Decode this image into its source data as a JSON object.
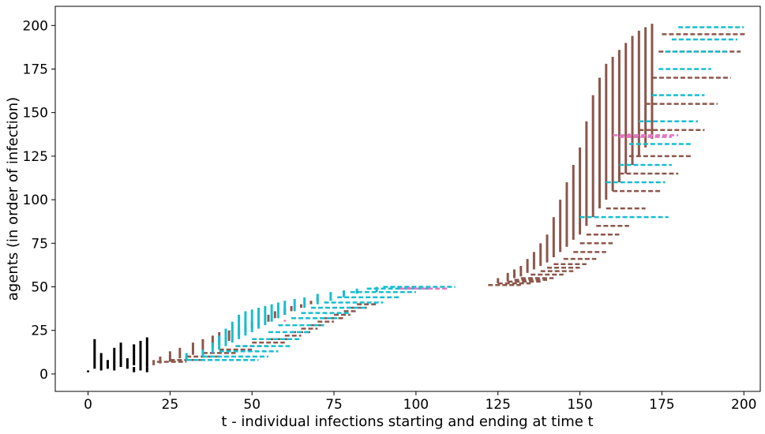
{
  "chart_data": {
    "type": "line",
    "xlabel": "t - individual infections starting and ending at time t",
    "ylabel": "agents (in order of infection)",
    "xlim": [
      -10,
      205
    ],
    "ylim": [
      -10,
      211
    ],
    "xticks": [
      0,
      25,
      50,
      75,
      100,
      125,
      150,
      175,
      200
    ],
    "yticks": [
      0,
      25,
      50,
      75,
      100,
      125,
      150,
      175,
      200
    ],
    "xtick_labels": [
      "0",
      "25",
      "50",
      "75",
      "100",
      "125",
      "150",
      "175",
      "200"
    ],
    "ytick_labels": [
      "0",
      "25",
      "50",
      "75",
      "100",
      "125",
      "150",
      "175",
      "200"
    ],
    "grid": false,
    "legend": "none",
    "colors": {
      "black": "#000000",
      "brown": "#8c564b",
      "cyan": "#17becf",
      "pink": "#e377c2"
    },
    "series": [
      {
        "color": "black",
        "segments": [
          [
            0,
            1,
            2
          ],
          [
            2,
            3,
            20
          ],
          [
            4,
            2,
            12
          ],
          [
            6,
            3,
            8
          ],
          [
            8,
            2,
            15
          ],
          [
            10,
            4,
            18
          ],
          [
            12,
            3,
            9
          ],
          [
            14,
            5,
            17
          ],
          [
            16,
            2,
            19
          ],
          [
            18,
            4,
            21
          ],
          [
            14,
            1,
            4
          ],
          [
            18,
            1,
            4
          ]
        ]
      },
      {
        "color": "brown",
        "segments": [
          [
            20,
            5,
            8
          ],
          [
            22,
            6,
            10
          ],
          [
            25,
            7,
            13
          ],
          [
            28,
            9,
            15
          ],
          [
            32,
            11,
            18
          ],
          [
            35,
            13,
            20
          ],
          [
            38,
            15,
            22
          ],
          [
            40,
            17,
            24
          ],
          [
            43,
            19,
            25
          ],
          [
            46,
            22,
            27
          ],
          [
            48,
            24,
            28
          ],
          [
            50,
            26,
            30
          ],
          [
            52,
            28,
            32
          ],
          [
            55,
            30,
            34
          ],
          [
            57,
            32,
            36
          ],
          [
            60,
            34,
            38
          ],
          [
            62,
            36,
            39
          ],
          [
            65,
            38,
            40
          ],
          [
            68,
            40,
            42
          ],
          [
            70,
            42,
            44
          ],
          [
            125,
            52,
            55
          ],
          [
            128,
            53,
            58
          ],
          [
            130,
            55,
            60
          ],
          [
            132,
            56,
            62
          ],
          [
            134,
            58,
            66
          ],
          [
            136,
            60,
            70
          ],
          [
            138,
            62,
            75
          ],
          [
            140,
            64,
            80
          ],
          [
            142,
            67,
            90
          ],
          [
            144,
            70,
            100
          ],
          [
            146,
            73,
            110
          ],
          [
            148,
            77,
            120
          ],
          [
            150,
            80,
            130
          ],
          [
            152,
            85,
            145
          ],
          [
            154,
            90,
            160
          ],
          [
            156,
            95,
            170
          ],
          [
            158,
            100,
            178
          ],
          [
            160,
            105,
            182
          ],
          [
            162,
            110,
            186
          ],
          [
            164,
            115,
            190
          ],
          [
            166,
            120,
            194
          ],
          [
            168,
            125,
            197
          ],
          [
            170,
            130,
            199
          ],
          [
            172,
            135,
            201
          ]
        ],
        "hlines": [
          [
            21,
            7,
            30
          ],
          [
            25,
            8,
            35
          ],
          [
            30,
            10,
            40
          ],
          [
            35,
            12,
            45
          ],
          [
            40,
            14,
            50
          ],
          [
            45,
            16,
            55
          ],
          [
            50,
            18,
            60
          ],
          [
            55,
            20,
            62
          ],
          [
            60,
            22,
            65
          ],
          [
            62,
            24,
            68
          ],
          [
            65,
            26,
            70
          ],
          [
            68,
            28,
            72
          ],
          [
            70,
            30,
            75
          ],
          [
            72,
            32,
            78
          ],
          [
            75,
            34,
            80
          ],
          [
            78,
            36,
            82
          ],
          [
            80,
            38,
            85
          ],
          [
            82,
            40,
            88
          ],
          [
            122,
            51,
            132
          ],
          [
            125,
            52,
            135
          ],
          [
            128,
            53,
            138
          ],
          [
            130,
            54,
            140
          ],
          [
            132,
            55,
            142
          ],
          [
            135,
            57,
            145
          ],
          [
            138,
            59,
            148
          ],
          [
            140,
            61,
            150
          ],
          [
            142,
            63,
            152
          ],
          [
            145,
            66,
            155
          ],
          [
            148,
            70,
            158
          ],
          [
            150,
            75,
            160
          ],
          [
            152,
            80,
            162
          ],
          [
            155,
            85,
            165
          ],
          [
            158,
            95,
            170
          ],
          [
            160,
            105,
            175
          ],
          [
            162,
            115,
            180
          ],
          [
            165,
            125,
            184
          ],
          [
            168,
            140,
            188
          ],
          [
            170,
            155,
            192
          ],
          [
            172,
            170,
            196
          ],
          [
            174,
            185,
            199
          ],
          [
            175,
            195,
            201
          ]
        ]
      },
      {
        "color": "cyan",
        "segments": [
          [
            30,
            8,
            12
          ],
          [
            35,
            10,
            14
          ],
          [
            38,
            12,
            18
          ],
          [
            40,
            14,
            22
          ],
          [
            42,
            16,
            26
          ],
          [
            44,
            18,
            30
          ],
          [
            46,
            20,
            34
          ],
          [
            48,
            22,
            36
          ],
          [
            50,
            24,
            37
          ],
          [
            52,
            26,
            38
          ],
          [
            54,
            28,
            39
          ],
          [
            56,
            30,
            40
          ],
          [
            58,
            32,
            41
          ],
          [
            60,
            34,
            42
          ],
          [
            63,
            36,
            43
          ],
          [
            66,
            38,
            44
          ],
          [
            70,
            40,
            46
          ],
          [
            74,
            42,
            47
          ],
          [
            78,
            44,
            48
          ],
          [
            82,
            46,
            49
          ],
          [
            88,
            47,
            50
          ]
        ],
        "hlines": [
          [
            30,
            8,
            52
          ],
          [
            35,
            10,
            55
          ],
          [
            40,
            13,
            58
          ],
          [
            45,
            16,
            62
          ],
          [
            50,
            20,
            65
          ],
          [
            55,
            24,
            68
          ],
          [
            58,
            28,
            72
          ],
          [
            62,
            32,
            76
          ],
          [
            65,
            35,
            80
          ],
          [
            68,
            38,
            85
          ],
          [
            72,
            41,
            90
          ],
          [
            76,
            44,
            95
          ],
          [
            80,
            47,
            100
          ],
          [
            85,
            49,
            105
          ],
          [
            90,
            50,
            112
          ],
          [
            150,
            90,
            177
          ],
          [
            158,
            110,
            176
          ],
          [
            162,
            120,
            178
          ],
          [
            165,
            132,
            184
          ],
          [
            168,
            145,
            186
          ],
          [
            172,
            160,
            188
          ],
          [
            174,
            175,
            190
          ],
          [
            176,
            185,
            195
          ],
          [
            178,
            192,
            198
          ],
          [
            180,
            199,
            200
          ]
        ]
      },
      {
        "color": "pink",
        "segments": [
          [
            60,
            30,
            31
          ],
          [
            98,
            49,
            50
          ],
          [
            165,
            137,
            138
          ]
        ],
        "hlines": [
          [
            95,
            49,
            110
          ],
          [
            160,
            137,
            180
          ],
          [
            162,
            136,
            178
          ]
        ]
      }
    ]
  }
}
